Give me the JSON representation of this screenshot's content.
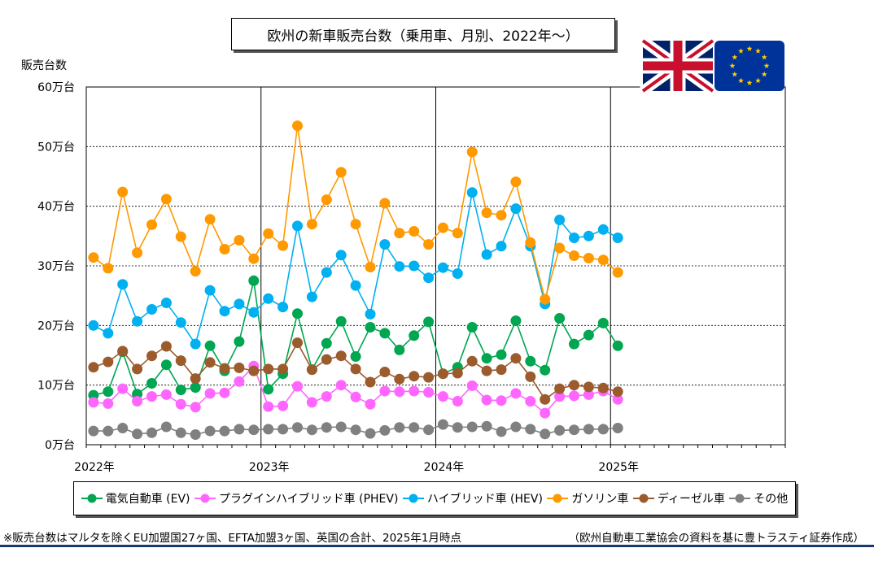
{
  "title": "欧州の新車販売台数（乗用車、月別、2022年～）",
  "y_unit_label": "販売台数",
  "footnote": "※販売台数はマルタを除くEU加盟国27ヶ国、EFTA加盟3ヶ国、英国の合計、2025年1月時点",
  "source": "（欧州自動車工業協会の資料を基に豊トラスティ証券作成）",
  "flags": [
    "uk-flag",
    "eu-flag"
  ],
  "chart_data": {
    "type": "line",
    "title": "欧州の新車販売台数（乗用車、月別、2022年～）",
    "ylabel": "販売台数",
    "xlabel": "",
    "ylim": [
      0,
      60
    ],
    "y_ticks": [
      0,
      10,
      20,
      30,
      40,
      50,
      60
    ],
    "y_tick_labels": [
      "0万台",
      "10万台",
      "20万台",
      "30万台",
      "40万台",
      "50万台",
      "60万台"
    ],
    "x_tick_labels": [
      "2022年",
      "2023年",
      "2024年",
      "2025年"
    ],
    "months_per_year": 12,
    "total_months": 48,
    "grid": true,
    "legend_position": "bottom",
    "x": [
      "2022-01",
      "2022-02",
      "2022-03",
      "2022-04",
      "2022-05",
      "2022-06",
      "2022-07",
      "2022-08",
      "2022-09",
      "2022-10",
      "2022-11",
      "2022-12",
      "2023-01",
      "2023-02",
      "2023-03",
      "2023-04",
      "2023-05",
      "2023-06",
      "2023-07",
      "2023-08",
      "2023-09",
      "2023-10",
      "2023-11",
      "2023-12",
      "2024-01",
      "2024-02",
      "2024-03",
      "2024-04",
      "2024-05",
      "2024-06",
      "2024-07",
      "2024-08",
      "2024-09",
      "2024-10",
      "2024-11",
      "2024-12",
      "2025-01"
    ],
    "series": [
      {
        "name": "電気自動車 (EV)",
        "color": "#00a650",
        "values": [
          8.3,
          8.9,
          15.6,
          8.5,
          10.3,
          13.4,
          9.2,
          9.6,
          16.6,
          12.4,
          17.3,
          27.5,
          9.3,
          11.9,
          22.0,
          12.6,
          17.0,
          20.7,
          14.8,
          19.7,
          18.7,
          15.9,
          18.3,
          20.6,
          11.9,
          13.0,
          19.7,
          14.5,
          15.1,
          20.8,
          14.0,
          12.5,
          21.2,
          16.9,
          18.4,
          20.4,
          16.6
        ]
      },
      {
        "name": "プラグインハイブリッド車 (PHEV)",
        "color": "#ff66ff",
        "values": [
          7.1,
          6.9,
          9.4,
          7.3,
          8.1,
          8.4,
          6.8,
          6.3,
          8.6,
          8.7,
          10.6,
          13.2,
          6.4,
          6.5,
          9.8,
          7.1,
          8.1,
          10.0,
          8.0,
          6.8,
          9.0,
          8.9,
          9.0,
          8.8,
          8.1,
          7.3,
          9.9,
          7.5,
          7.4,
          8.6,
          7.3,
          5.3,
          8.1,
          8.2,
          8.4,
          9.0,
          7.6
        ]
      },
      {
        "name": "ハイブリッド車 (HEV)",
        "color": "#00b0f0",
        "values": [
          20.0,
          18.7,
          26.9,
          20.7,
          22.7,
          23.8,
          20.5,
          16.9,
          25.9,
          22.4,
          23.6,
          22.2,
          24.5,
          23.1,
          36.7,
          24.8,
          28.9,
          31.8,
          26.7,
          21.9,
          33.6,
          29.9,
          30.0,
          28.0,
          29.7,
          28.7,
          42.3,
          31.9,
          33.3,
          39.6,
          33.3,
          23.6,
          37.7,
          34.7,
          35.0,
          36.1,
          34.7
        ]
      },
      {
        "name": "ガソリン車",
        "color": "#ff9900",
        "values": [
          31.4,
          29.6,
          42.4,
          32.2,
          36.9,
          41.2,
          34.9,
          29.1,
          37.8,
          32.8,
          34.3,
          31.2,
          35.4,
          33.4,
          53.5,
          37.0,
          41.1,
          45.7,
          37.0,
          29.8,
          40.5,
          35.5,
          35.8,
          33.6,
          36.4,
          35.5,
          49.1,
          38.9,
          38.5,
          44.1,
          33.9,
          24.4,
          33.0,
          31.7,
          31.3,
          31.0,
          28.9
        ]
      },
      {
        "name": "ディーゼル車",
        "color": "#9b5b2c",
        "values": [
          13.0,
          13.9,
          15.7,
          12.7,
          14.9,
          16.5,
          14.1,
          11.1,
          13.8,
          12.8,
          12.9,
          12.4,
          12.7,
          12.7,
          17.1,
          12.6,
          14.3,
          14.9,
          12.7,
          10.5,
          12.2,
          11.0,
          11.5,
          11.3,
          11.9,
          12.0,
          14.0,
          12.4,
          12.6,
          14.5,
          11.4,
          7.6,
          9.4,
          10.0,
          9.7,
          9.5,
          8.9
        ]
      },
      {
        "name": "その他",
        "color": "#808080",
        "values": [
          2.3,
          2.3,
          2.8,
          1.8,
          2.0,
          3.0,
          2.0,
          1.7,
          2.3,
          2.3,
          2.6,
          2.5,
          2.6,
          2.6,
          2.9,
          2.5,
          2.9,
          3.0,
          2.5,
          1.9,
          2.4,
          2.9,
          2.9,
          2.5,
          3.4,
          2.9,
          3.0,
          3.1,
          2.2,
          3.0,
          2.6,
          1.8,
          2.4,
          2.5,
          2.6,
          2.6,
          2.8
        ]
      }
    ]
  }
}
